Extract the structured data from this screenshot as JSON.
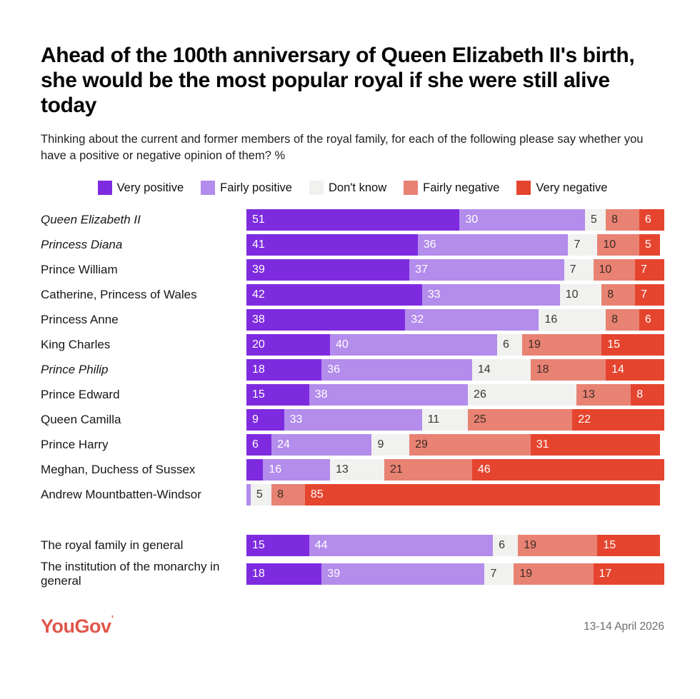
{
  "title": "Ahead of the 100th anniversary of Queen Elizabeth II's birth, she would be the most popular royal if she were still alive today",
  "subtitle": "Thinking about the current and former members of the royal family, for each of the following please say whether you have a positive or negative opinion of them? %",
  "colors": {
    "very_positive": "#7e2be0",
    "fairly_positive": "#b38cec",
    "dont_know": "#f1f1ef",
    "fairly_negative": "#e88273",
    "very_negative": "#e5452f",
    "logo": "#e0564b"
  },
  "chart_data": {
    "type": "bar",
    "stacked": true,
    "orientation": "horizontal",
    "xlim": [
      0,
      100
    ],
    "grid": false,
    "legend_position": "top-center",
    "min_value_label": 5,
    "group_break_before": 12,
    "categories": [
      {
        "label": "Queen Elizabeth II",
        "italic": true
      },
      {
        "label": "Princess Diana",
        "italic": true
      },
      {
        "label": "Prince William",
        "italic": false
      },
      {
        "label": "Catherine, Princess of Wales",
        "italic": false
      },
      {
        "label": "Princess Anne",
        "italic": false
      },
      {
        "label": "King Charles",
        "italic": false
      },
      {
        "label": "Prince Philip",
        "italic": true
      },
      {
        "label": "Prince Edward",
        "italic": false
      },
      {
        "label": "Queen Camilla",
        "italic": false
      },
      {
        "label": "Prince Harry",
        "italic": false
      },
      {
        "label": "Meghan, Duchess of Sussex",
        "italic": false
      },
      {
        "label": "Andrew Mountbatten-Windsor",
        "italic": false
      },
      {
        "label": "The royal family in general",
        "italic": false
      },
      {
        "label": "The institution of the monarchy in general",
        "italic": false
      }
    ],
    "series": [
      {
        "name": "Very positive",
        "key": "very-positive",
        "color": "#7e2be0",
        "value_color": "#ffffff",
        "values": [
          51,
          41,
          39,
          42,
          38,
          20,
          18,
          15,
          9,
          6,
          4,
          0,
          15,
          18
        ]
      },
      {
        "name": "Fairly positive",
        "key": "fairly-positive",
        "color": "#b38cec",
        "value_color": "#ffffff",
        "values": [
          30,
          36,
          37,
          33,
          32,
          40,
          36,
          38,
          33,
          24,
          16,
          1,
          44,
          39
        ]
      },
      {
        "name": "Don't know",
        "key": "dont-know",
        "color": "#f1f1ef",
        "value_color": "#363636",
        "values": [
          5,
          7,
          7,
          10,
          16,
          6,
          14,
          26,
          11,
          9,
          13,
          5,
          6,
          7
        ]
      },
      {
        "name": "Fairly negative",
        "key": "fairly-negative",
        "color": "#e88273",
        "value_color": "#3f2b26",
        "values": [
          8,
          10,
          10,
          8,
          8,
          19,
          18,
          13,
          25,
          29,
          21,
          8,
          19,
          19
        ]
      },
      {
        "name": "Very negative",
        "key": "very-negative",
        "color": "#e5452f",
        "value_color": "#ffffff",
        "values": [
          6,
          5,
          7,
          7,
          6,
          15,
          14,
          8,
          22,
          31,
          46,
          85,
          15,
          17
        ]
      }
    ]
  },
  "footer": {
    "logo": "YouGov",
    "trademark": "’",
    "date": "13-14 April 2026"
  }
}
